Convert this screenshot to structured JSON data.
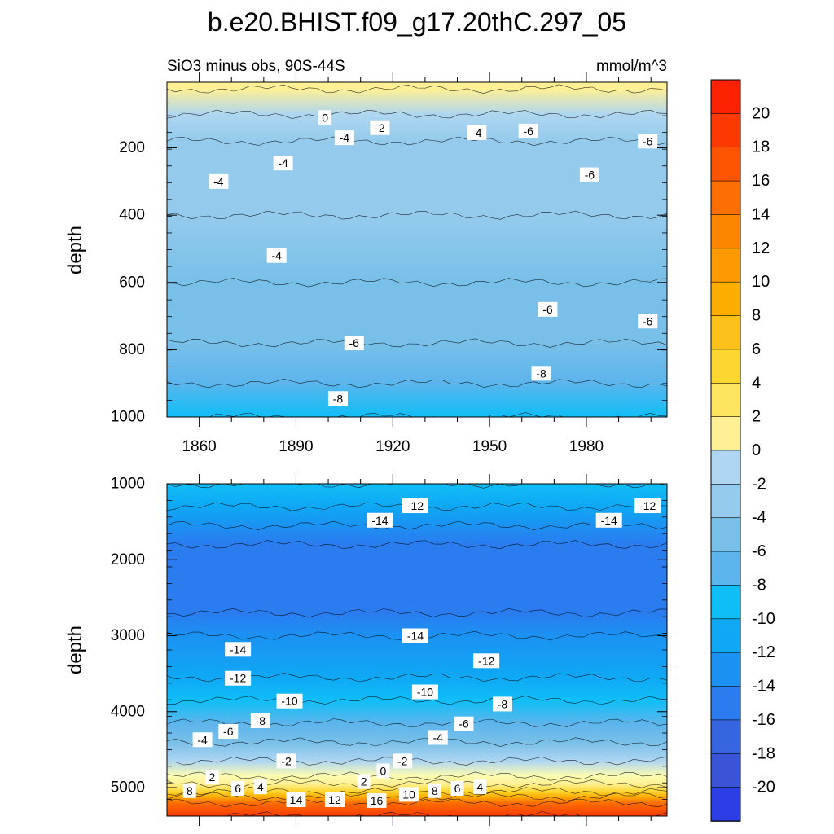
{
  "title": "b.e20.BHIST.f09_g17.20thC.297_05",
  "subtitle_left": "SiO3 minus obs, 90S-44S",
  "subtitle_right": "mmol/m^3",
  "colors": {
    "levels_neg": [
      "#c6e3f7",
      "#aed6f1",
      "#94cbec",
      "#78bfe9",
      "#5bb5ec",
      "#0fbef7",
      "#0fa8f5",
      "#1b92f2",
      "#2a7cef",
      "#3566e0",
      "#3a54d8",
      "#2c3ee6",
      "#1a22f0",
      "#0a0cf0",
      "#4a20e6",
      "#7a20f0"
    ],
    "levels_pos": [
      "#fefcb0",
      "#fff095",
      "#ffe45f",
      "#fed630",
      "#fdc219",
      "#fcae00",
      "#fc9a00",
      "#fc8600",
      "#fc6f00",
      "#fc5400",
      "#fc3a00",
      "#fc2100",
      "#fa0000",
      "#e50000",
      "#d10808",
      "#bb1010",
      "#de4040",
      "#f07070",
      "#fcaaaa"
    ]
  },
  "colorbar": {
    "labels": [
      "20",
      "18",
      "16",
      "14",
      "12",
      "10",
      "8",
      "6",
      "4",
      "2",
      "0",
      "-2",
      "-4",
      "-6",
      "-8",
      "-10",
      "-12",
      "-14",
      "-16",
      "-18",
      "-20"
    ]
  },
  "chart_data": [
    {
      "type": "heatmap",
      "panel": "upper",
      "title": "SiO3 minus obs, 90S-44S",
      "units": "mmol/m^3",
      "xlabel": "",
      "ylabel": "depth",
      "x_ticks": [
        "1860",
        "1890",
        "1920",
        "1950",
        "1980"
      ],
      "y_ticks": [
        "200",
        "400",
        "600",
        "800",
        "1000"
      ],
      "xlim": [
        1850,
        2005
      ],
      "ylim": [
        1000,
        5
      ],
      "depth_profile": [
        {
          "depth": 25,
          "value": 1
        },
        {
          "depth": 100,
          "value": -2
        },
        {
          "depth": 180,
          "value": -4
        },
        {
          "depth": 400,
          "value": -4
        },
        {
          "depth": 600,
          "value": -5
        },
        {
          "depth": 780,
          "value": -6
        },
        {
          "depth": 900,
          "value": -8
        },
        {
          "depth": 1000,
          "value": -9
        }
      ],
      "contour_labels": [
        {
          "text": "0",
          "year": 1899,
          "depth": 110
        },
        {
          "text": "-2",
          "year": 1916,
          "depth": 140
        },
        {
          "text": "-4",
          "year": 1905,
          "depth": 170
        },
        {
          "text": "-4",
          "year": 1946,
          "depth": 155
        },
        {
          "text": "-6",
          "year": 1962,
          "depth": 150
        },
        {
          "text": "-6",
          "year": 1999,
          "depth": 180
        },
        {
          "text": "-4",
          "year": 1886,
          "depth": 245
        },
        {
          "text": "-4",
          "year": 1866,
          "depth": 300
        },
        {
          "text": "-6",
          "year": 1981,
          "depth": 280
        },
        {
          "text": "-4",
          "year": 1884,
          "depth": 520
        },
        {
          "text": "-6",
          "year": 1968,
          "depth": 680
        },
        {
          "text": "-6",
          "year": 1999,
          "depth": 715
        },
        {
          "text": "-6",
          "year": 1908,
          "depth": 780
        },
        {
          "text": "-8",
          "year": 1966,
          "depth": 870
        },
        {
          "text": "-8",
          "year": 1903,
          "depth": 945
        }
      ]
    },
    {
      "type": "heatmap",
      "panel": "lower",
      "title": "",
      "units": "mmol/m^3",
      "xlabel": "",
      "ylabel": "depth",
      "y_ticks": [
        "1000",
        "2000",
        "3000",
        "4000",
        "5000"
      ],
      "xlim": [
        1850,
        2005
      ],
      "ylim": [
        5375,
        1000
      ],
      "depth_profile": [
        {
          "depth": 1000,
          "value": -9
        },
        {
          "depth": 1300,
          "value": -12
        },
        {
          "depth": 1550,
          "value": -14
        },
        {
          "depth": 1800,
          "value": -16
        },
        {
          "depth": 2700,
          "value": -16
        },
        {
          "depth": 3000,
          "value": -14
        },
        {
          "depth": 3550,
          "value": -12
        },
        {
          "depth": 3850,
          "value": -10
        },
        {
          "depth": 4150,
          "value": -8
        },
        {
          "depth": 4400,
          "value": -5
        },
        {
          "depth": 4650,
          "value": -2
        },
        {
          "depth": 4850,
          "value": 0
        },
        {
          "depth": 4950,
          "value": 2
        },
        {
          "depth": 5050,
          "value": 6
        },
        {
          "depth": 5120,
          "value": 10
        },
        {
          "depth": 5200,
          "value": 16
        },
        {
          "depth": 5375,
          "value": 20
        }
      ],
      "contour_labels": [
        {
          "text": "-12",
          "year": 1927,
          "depth": 1290
        },
        {
          "text": "-12",
          "year": 1999,
          "depth": 1290
        },
        {
          "text": "-14",
          "year": 1916,
          "depth": 1480
        },
        {
          "text": "-14",
          "year": 1987,
          "depth": 1480
        },
        {
          "text": "-14",
          "year": 1927,
          "depth": 3000
        },
        {
          "text": "-14",
          "year": 1872,
          "depth": 3180
        },
        {
          "text": "-12",
          "year": 1949,
          "depth": 3330
        },
        {
          "text": "-12",
          "year": 1872,
          "depth": 3560
        },
        {
          "text": "-10",
          "year": 1930,
          "depth": 3740
        },
        {
          "text": "-10",
          "year": 1888,
          "depth": 3860
        },
        {
          "text": "-8",
          "year": 1954,
          "depth": 3900
        },
        {
          "text": "-8",
          "year": 1879,
          "depth": 4120
        },
        {
          "text": "-6",
          "year": 1942,
          "depth": 4160
        },
        {
          "text": "-6",
          "year": 1869,
          "depth": 4260
        },
        {
          "text": "-4",
          "year": 1934,
          "depth": 4340
        },
        {
          "text": "-4",
          "year": 1861,
          "depth": 4370
        },
        {
          "text": "-2",
          "year": 1887,
          "depth": 4650
        },
        {
          "text": "-2",
          "year": 1923,
          "depth": 4650
        },
        {
          "text": "0",
          "year": 1917,
          "depth": 4780
        },
        {
          "text": "2",
          "year": 1864,
          "depth": 4860
        },
        {
          "text": "2",
          "year": 1911,
          "depth": 4920
        },
        {
          "text": "6",
          "year": 1872,
          "depth": 5010
        },
        {
          "text": "4",
          "year": 1879,
          "depth": 4990
        },
        {
          "text": "6",
          "year": 1940,
          "depth": 5010
        },
        {
          "text": "4",
          "year": 1947,
          "depth": 4990
        },
        {
          "text": "8",
          "year": 1857,
          "depth": 5040
        },
        {
          "text": "8",
          "year": 1933,
          "depth": 5040
        },
        {
          "text": "10",
          "year": 1925,
          "depth": 5090
        },
        {
          "text": "14",
          "year": 1890,
          "depth": 5160
        },
        {
          "text": "12",
          "year": 1902,
          "depth": 5160
        },
        {
          "text": "16",
          "year": 1915,
          "depth": 5170
        }
      ]
    }
  ]
}
